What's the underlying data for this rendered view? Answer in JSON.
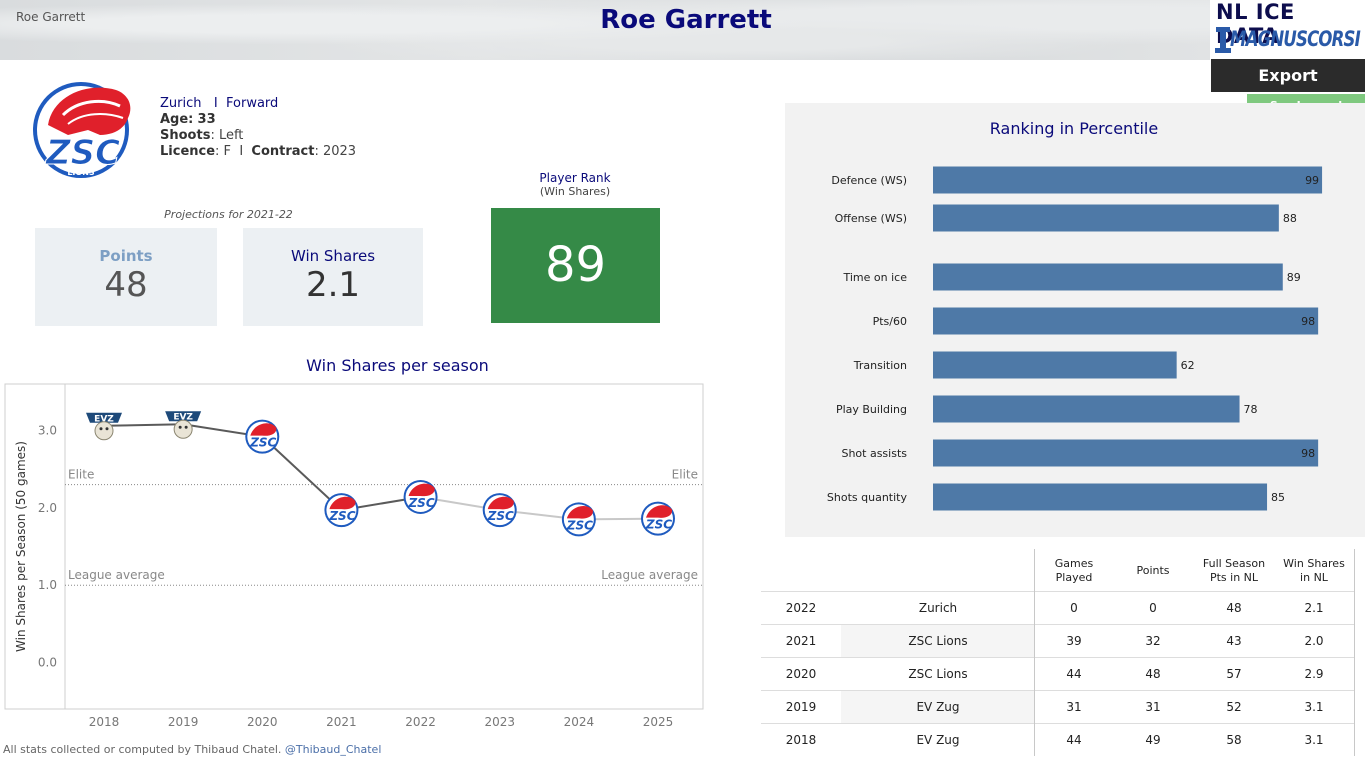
{
  "header": {
    "corner_name": "Roe Garrett",
    "title": "Roe Garrett",
    "brand_line1": "NL ICE DATA",
    "brand_line2": "MAGNUSCORSI",
    "export_label": "Export",
    "legend_label": "See Legend"
  },
  "player": {
    "team": "Zurich",
    "position": "Forward",
    "age_label": "Age:",
    "age": "33",
    "shoots_label": "Shoots",
    "shoots": ": Left",
    "licence_label": "Licence",
    "licence": ": F",
    "contract_label": "Contract",
    "contract": ": 2023",
    "sep": "I",
    "logo_text": "ZSC",
    "logo_sub": "LIONS"
  },
  "projections": {
    "caption": "Projections for 2021-22",
    "points_label": "Points",
    "points_value": "48",
    "ws_label": "Win Shares",
    "ws_value": "2.1"
  },
  "rank": {
    "caption": "Player Rank",
    "subcaption": "(Win Shares)",
    "value": "89"
  },
  "ws_chart_title": "Win Shares per season",
  "pct_title": "Ranking in Percentile",
  "footer": {
    "text": "All stats collected or computed by Thibaud Chatel.",
    "handle": "@Thibaud_Chatel"
  },
  "colors": {
    "navy": "#0a0a7a",
    "bar": "#4e79a7",
    "rank_green": "#358a47",
    "legend_green": "#7fc97f",
    "zsc_blue": "#1f5bbf",
    "zsc_red": "#e0202b",
    "evz_blue": "#1e4a7a"
  },
  "chart_data": [
    {
      "type": "line",
      "ylabel": "Win Shares per Season (50 games)",
      "xlabel": "",
      "x": [
        "2018",
        "2019",
        "2020",
        "2021",
        "2022",
        "2023",
        "2024",
        "2025"
      ],
      "values": [
        3.06,
        3.08,
        2.92,
        1.97,
        2.14,
        1.97,
        1.85,
        1.86
      ],
      "point_icons": [
        "evz-logo",
        "evz-logo",
        "zsc-logo",
        "zsc-logo",
        "zsc-logo",
        "zsc-logo",
        "zsc-logo",
        "zsc-logo"
      ],
      "yticks": [
        "0.0",
        "1.0",
        "2.0",
        "3.0"
      ],
      "ylim": [
        -0.6,
        3.6
      ],
      "reference_lines": [
        {
          "label_left": "Elite",
          "label_right": "Elite",
          "value": 2.3
        },
        {
          "label_left": "League average",
          "label_right": "League average",
          "value": 1.0
        }
      ],
      "projection_from": "2022",
      "grid": false
    },
    {
      "type": "bar",
      "orientation": "horizontal",
      "title": "Ranking in Percentile",
      "categories": [
        "Defence (WS)",
        "Offense (WS)",
        "Time on ice",
        "Pts/60",
        "Transition",
        "Play Building",
        "Shot assists",
        "Shots quantity"
      ],
      "values": [
        99,
        88,
        89,
        98,
        62,
        78,
        98,
        85
      ],
      "xlim": [
        0,
        100
      ]
    },
    {
      "type": "table",
      "columns": [
        "",
        "",
        "Games Played",
        "Points",
        "Full Season Pts in NL",
        "Win Shares in NL"
      ],
      "header_lines": [
        [
          "Games",
          "Played"
        ],
        [
          "Points"
        ],
        [
          "Full Season",
          "Pts in NL"
        ],
        [
          "Win Shares",
          "in NL"
        ]
      ],
      "rows": [
        [
          "2022",
          "Zurich",
          "0",
          "0",
          "48",
          "2.1"
        ],
        [
          "2021",
          "ZSC Lions",
          "39",
          "32",
          "43",
          "2.0"
        ],
        [
          "2020",
          "ZSC Lions",
          "44",
          "48",
          "57",
          "2.9"
        ],
        [
          "2019",
          "EV Zug",
          "31",
          "31",
          "52",
          "3.1"
        ],
        [
          "2018",
          "EV Zug",
          "44",
          "49",
          "58",
          "3.1"
        ]
      ]
    }
  ]
}
